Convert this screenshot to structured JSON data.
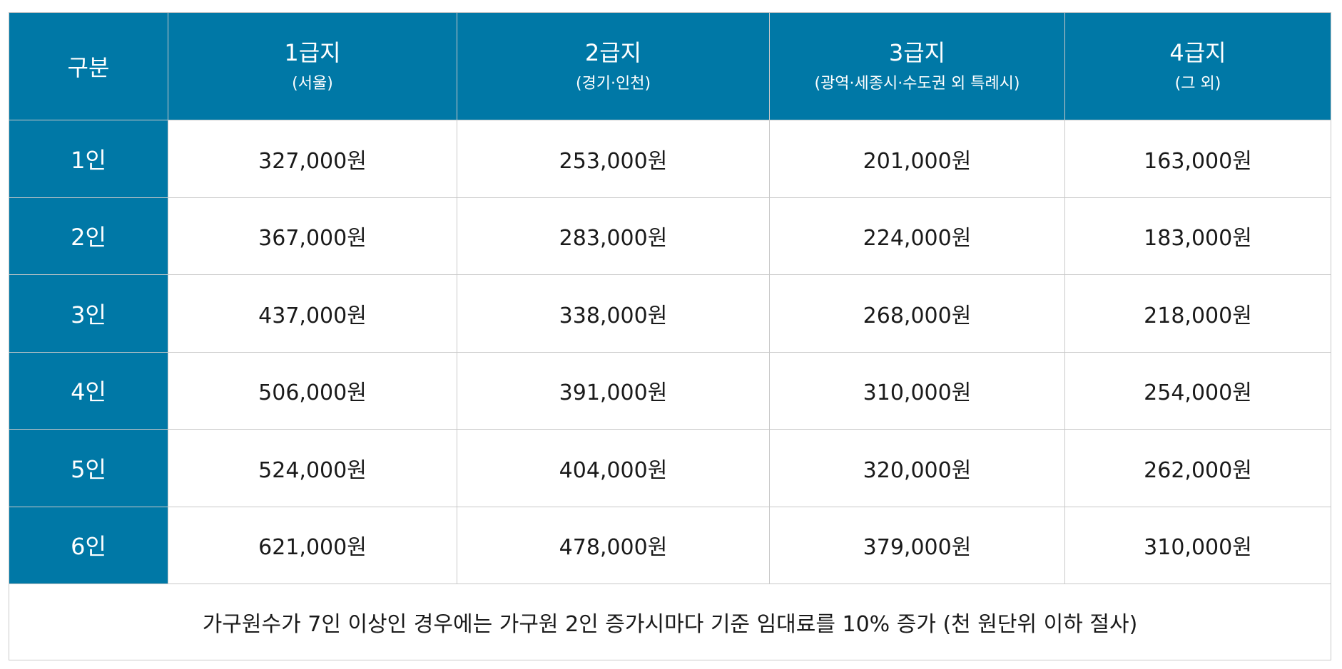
{
  "table": {
    "corner_label": "구분",
    "columns": [
      {
        "title": "1급지",
        "subtitle": "(서울)"
      },
      {
        "title": "2급지",
        "subtitle": "(경기·인천)"
      },
      {
        "title": "3급지",
        "subtitle": "(광역·세종시·수도권 외 특례시)"
      },
      {
        "title": "4급지",
        "subtitle": "(그 외)"
      }
    ],
    "rows": [
      {
        "label": "1인",
        "values": [
          "327,000원",
          "253,000원",
          "201,000원",
          "163,000원"
        ]
      },
      {
        "label": "2인",
        "values": [
          "367,000원",
          "283,000원",
          "224,000원",
          "183,000원"
        ]
      },
      {
        "label": "3인",
        "values": [
          "437,000원",
          "338,000원",
          "268,000원",
          "218,000원"
        ]
      },
      {
        "label": "4인",
        "values": [
          "506,000원",
          "391,000원",
          "310,000원",
          "254,000원"
        ]
      },
      {
        "label": "5인",
        "values": [
          "524,000원",
          "404,000원",
          "320,000원",
          "262,000원"
        ]
      },
      {
        "label": "6인",
        "values": [
          "621,000원",
          "478,000원",
          "379,000원",
          "310,000원"
        ]
      }
    ],
    "footnote": "가구원수가 7인 이상인 경우에는 가구원 2인 증가시마다 기준 임대료를 10% 증가 (천 원단위 이하 절사)"
  },
  "colors": {
    "header_bg": "#0078a6",
    "header_text": "#ffffff",
    "border": "#c9c9c9"
  }
}
